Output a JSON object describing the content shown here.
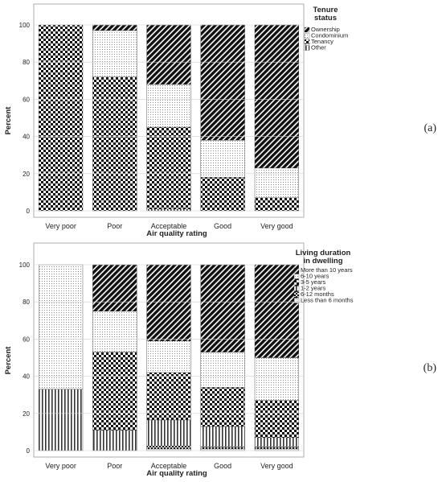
{
  "chart_data": [
    {
      "type": "bar",
      "stacked": true,
      "panel_label": "(a)",
      "xlabel": "Air quality rating",
      "ylabel": "Percent",
      "ylim": [
        0,
        100
      ],
      "yticks": [
        0,
        20,
        40,
        60,
        80,
        100
      ],
      "grid": true,
      "legend_position": "top-right",
      "legend_title": [
        "Tenure",
        "status"
      ],
      "categories": [
        "Very poor",
        "Poor",
        "Acceptable",
        "Good",
        "Very good"
      ],
      "series": [
        {
          "name": "Other",
          "pattern": "vertical-lines",
          "values": [
            0,
            0,
            1,
            0,
            0
          ]
        },
        {
          "name": "Tenancy",
          "pattern": "checker",
          "values": [
            100,
            72,
            44,
            18,
            7
          ]
        },
        {
          "name": "Condominium",
          "pattern": "dots",
          "values": [
            0,
            25,
            23,
            20,
            16
          ]
        },
        {
          "name": "Ownership",
          "pattern": "diagonal",
          "values": [
            0,
            3,
            32,
            62,
            77
          ]
        }
      ]
    },
    {
      "type": "bar",
      "stacked": true,
      "panel_label": "(b)",
      "xlabel": "Air quality rating",
      "ylabel": "Percent",
      "ylim": [
        0,
        100
      ],
      "yticks": [
        0,
        20,
        40,
        60,
        80,
        100
      ],
      "grid": true,
      "legend_position": "top-right",
      "legend_title": [
        "Living duration",
        "in dwelling"
      ],
      "categories": [
        "Very poor",
        "Poor",
        "Acceptable",
        "Good",
        "Very good"
      ],
      "series": [
        {
          "name": "Less than 6 months",
          "pattern": "fine-dots",
          "values": [
            0,
            0,
            1,
            1,
            1
          ]
        },
        {
          "name": "6-12 months",
          "pattern": "dense-checker",
          "values": [
            0,
            0,
            1.5,
            1,
            1
          ]
        },
        {
          "name": "1-2 years",
          "pattern": "vertical-lines",
          "values": [
            33,
            11,
            14,
            11,
            5
          ]
        },
        {
          "name": "3-5 years",
          "pattern": "checker",
          "values": [
            0,
            42,
            25.5,
            21,
            20
          ]
        },
        {
          "name": "6-10 years",
          "pattern": "dots",
          "values": [
            67,
            22,
            17,
            19,
            23
          ]
        },
        {
          "name": "More than 10 years",
          "pattern": "diagonal",
          "values": [
            0,
            25,
            41,
            47,
            50
          ]
        }
      ]
    }
  ]
}
